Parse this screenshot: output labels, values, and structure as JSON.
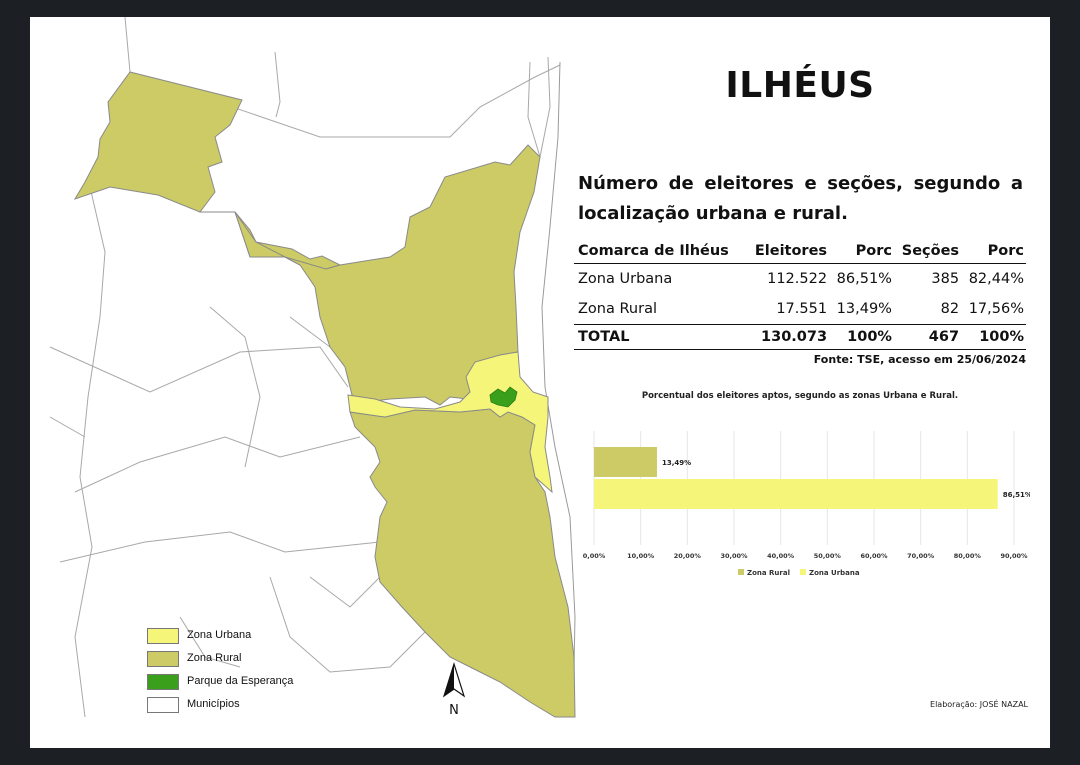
{
  "title": "ILHÉUS",
  "subtitle": "Número de eleitores e seções, segundo a localização urbana e rural.",
  "table": {
    "headers": [
      "Comarca de Ilhéus",
      "Eleitores",
      "Porc",
      "Seções",
      "Porc"
    ],
    "rows": [
      [
        "Zona Urbana",
        "112.522",
        "86,51%",
        "385",
        "82,44%"
      ],
      [
        "Zona Rural",
        "17.551",
        "13,49%",
        "82",
        "17,56%"
      ]
    ],
    "total": [
      "TOTAL",
      "130.073",
      "100%",
      "467",
      "100%"
    ]
  },
  "source": "Fonte: TSE, acesso em 25/06/2024",
  "legend": [
    {
      "label": "Zona Urbana",
      "color": "#f5f57a"
    },
    {
      "label": "Zona Rural",
      "color": "#cccb66"
    },
    {
      "label": "Parque da Esperança",
      "color": "#3aa01c"
    },
    {
      "label": "Municípios",
      "color": "#ffffff"
    }
  ],
  "north_label": "N",
  "credit": "Elaboração: JOSÉ NAZAL",
  "colors": {
    "urbana": "#f5f57a",
    "rural": "#cccb66",
    "parque": "#3aa01c",
    "boundary": "#8a8a8a",
    "gridline": "#e6e6e6"
  },
  "chart_data": {
    "type": "bar",
    "orientation": "horizontal",
    "title": "Porcentual dos eleitores aptos, segundo as zonas Urbana e Rural.",
    "series": [
      {
        "name": "Zona Rural",
        "value": 13.49,
        "label": "13,49%",
        "color": "#cccb66"
      },
      {
        "name": "Zona Urbana",
        "value": 86.51,
        "label": "86,51%",
        "color": "#f5f57a"
      }
    ],
    "xlim": [
      0,
      90
    ],
    "ticks": [
      "0,00%",
      "10,00%",
      "20,00%",
      "30,00%",
      "40,00%",
      "50,00%",
      "60,00%",
      "70,00%",
      "80,00%",
      "90,00%"
    ],
    "grid": true,
    "legend_position": "bottom"
  }
}
